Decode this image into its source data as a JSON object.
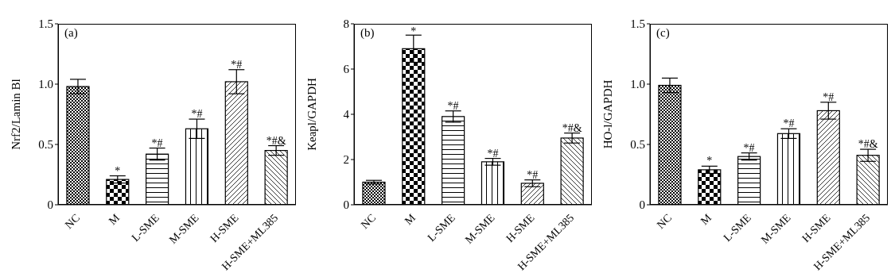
{
  "chart_data": [
    {
      "type": "bar",
      "ylabel": "Nrf2/Lamin Bl",
      "categories": [
        "NC",
        "M",
        "L-SME",
        "M-SME",
        "H-SME",
        "H-SME+ML385"
      ],
      "values": [
        0.98,
        0.21,
        0.42,
        0.63,
        1.02,
        0.45
      ],
      "errors": [
        0.06,
        0.03,
        0.05,
        0.08,
        0.1,
        0.04
      ],
      "color": "#000000",
      "ylim": [
        0,
        1.5
      ],
      "yticks": [
        0,
        {
          "value": 0.5,
          "label": "0.5"
        },
        {
          "value": 1,
          "label": "1.0"
        },
        {
          "value": 1.5,
          "label": "1.5"
        }
      ],
      "annotations": [
        "(a)",
        {
          "text": "*",
          "x": "M",
          "y": 0.24
        },
        {
          "text": "*#",
          "x": "L-SME",
          "y": 0.47
        },
        {
          "text": "*#",
          "x": "M-SME",
          "y": 0.71
        },
        {
          "text": "*#",
          "x": "H-SME",
          "y": 1.12
        },
        {
          "text": "*#&",
          "x": "H-SME+ML385",
          "y": 0.49
        }
      ]
    },
    {
      "type": "bar",
      "ylabel": "Keapl/GAPDH",
      "categories": [
        "NC",
        "M",
        "L-SME",
        "M-SME",
        "H-SME",
        "H-SME+ML385"
      ],
      "values": [
        1.0,
        6.9,
        3.9,
        1.9,
        0.95,
        2.95
      ],
      "errors": [
        0.08,
        0.6,
        0.25,
        0.15,
        0.15,
        0.22
      ],
      "color": "#000000",
      "ylim": [
        0,
        8
      ],
      "yticks": [
        0,
        2,
        4,
        6,
        8
      ],
      "annotations": [
        "(b)",
        {
          "text": "*",
          "x": "M",
          "y": 7.45
        },
        {
          "text": "*#",
          "x": "L-SME",
          "y": 4.15
        },
        {
          "text": "*#",
          "x": "M-SME",
          "y": 2.05
        },
        {
          "text": "*#",
          "x": "H-SME",
          "y": 1.1
        },
        {
          "text": "*#&",
          "x": "H-SME+ML385",
          "y": 3.17
        }
      ]
    },
    {
      "type": "bar",
      "ylabel": "HO-l/GAPDH",
      "categories": [
        "NC",
        "M",
        "L-SME",
        "M-SME",
        "H-SME",
        "H-SME+ML385"
      ],
      "values": [
        0.99,
        0.29,
        0.4,
        0.59,
        0.78,
        0.41
      ],
      "errors": [
        0.06,
        0.03,
        0.03,
        0.04,
        0.07,
        0.05
      ],
      "color": "#000000",
      "ylim": [
        0,
        1.5
      ],
      "yticks": [
        0,
        {
          "value": 0.5,
          "label": "0.5"
        },
        {
          "value": 1,
          "label": "1.0"
        },
        {
          "value": 1.5,
          "label": "1.5"
        }
      ],
      "annotations": [
        "(c)",
        {
          "text": "*",
          "x": "M",
          "y": 0.32
        },
        {
          "text": "*#",
          "x": "L-SME",
          "y": 0.43
        },
        {
          "text": "*#",
          "x": "M-SME",
          "y": 0.63
        },
        {
          "text": "*#",
          "x": "H-SME",
          "y": 0.85
        },
        {
          "text": "*#&",
          "x": "H-SME+ML385",
          "y": 0.46
        }
      ]
    }
  ]
}
